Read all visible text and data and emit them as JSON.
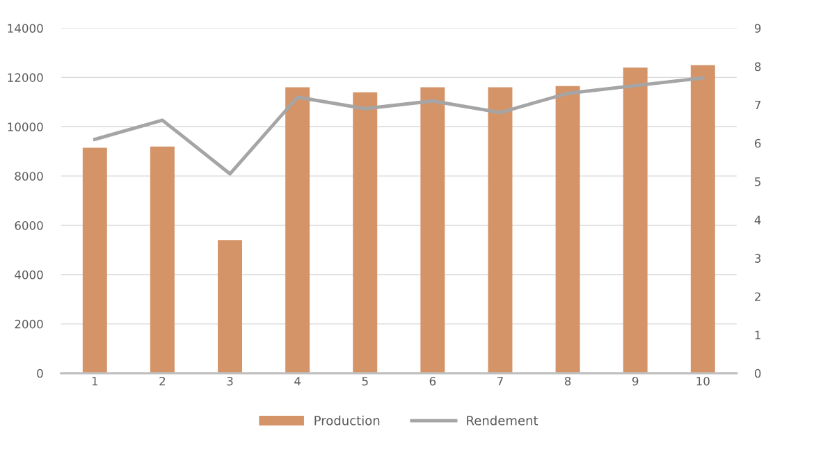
{
  "chart_data": {
    "type": "bar",
    "categories": [
      "1",
      "2",
      "3",
      "4",
      "5",
      "6",
      "7",
      "8",
      "9",
      "10"
    ],
    "series": [
      {
        "name": "Production",
        "color": "#d49468",
        "values": [
          9150,
          9200,
          5400,
          11600,
          11400,
          11600,
          11600,
          11650,
          12400,
          12500
        ]
      },
      {
        "name": "Rendement",
        "type": "line",
        "axis": "y2",
        "color": "#a5a5a5",
        "values": [
          6.1,
          6.6,
          5.2,
          7.2,
          6.9,
          7.1,
          6.8,
          7.3,
          7.5,
          7.7
        ]
      }
    ],
    "ylim": [
      0,
      14000
    ],
    "yticks": [
      0,
      2000,
      4000,
      6000,
      8000,
      10000,
      12000,
      14000
    ],
    "y2lim": [
      0,
      9
    ],
    "y2ticks": [
      0,
      1,
      2,
      3,
      4,
      5,
      6,
      7,
      8,
      9
    ],
    "grid": "y",
    "legend": "bottom",
    "marker": "none",
    "line_style": "solid"
  }
}
